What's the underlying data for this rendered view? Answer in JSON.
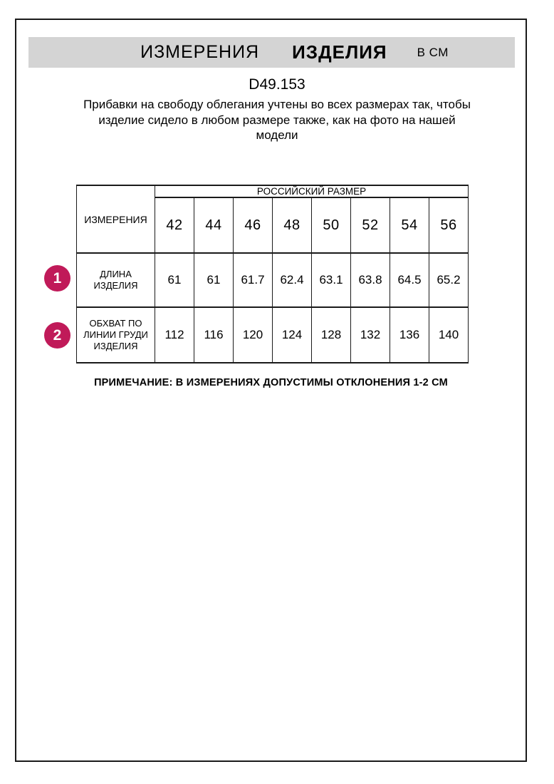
{
  "header": {
    "title_main": "ИЗМЕРЕНИЯ",
    "title_emphasis": "ИЗДЕЛИЯ",
    "unit": "В СМ"
  },
  "product": {
    "code": "D49.153",
    "description_lines": [
      "Прибавки на свободу облегания учтены во всех размерах так, чтобы",
      "изделие сидело в любом размере также, как на фото на нашей",
      "модели"
    ]
  },
  "table": {
    "corner_header": "ИЗМЕРЕНИЯ",
    "size_group_header": "РОССИЙСКИЙ РАЗМЕР",
    "sizes": [
      "42",
      "44",
      "46",
      "48",
      "50",
      "52",
      "54",
      "56"
    ],
    "rows": [
      {
        "marker": "1",
        "label": "ДЛИНА ИЗДЕЛИЯ",
        "values": [
          "61",
          "61",
          "61.7",
          "62.4",
          "63.1",
          "63.8",
          "64.5",
          "65.2"
        ]
      },
      {
        "marker": "2",
        "label": "ОБХВАТ ПО ЛИНИИ ГРУДИ ИЗДЕЛИЯ",
        "values": [
          "112",
          "116",
          "120",
          "124",
          "128",
          "132",
          "136",
          "140"
        ]
      }
    ]
  },
  "note": "ПРИМЕЧАНИЕ: В ИЗМЕРЕНИЯХ ДОПУСТИМЫ ОТКЛОНЕНИЯ 1-2 СМ",
  "colors": {
    "marker_badge": "#c01a59",
    "title_bar_bg": "#d4d4d4",
    "border": "#1a1a1a"
  }
}
